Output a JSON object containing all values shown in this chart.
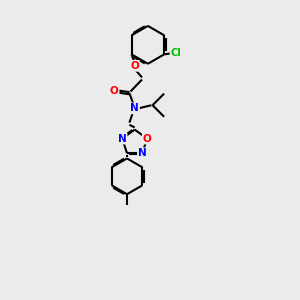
{
  "background_color": "#ebebeb",
  "bond_color": "#000000",
  "atom_colors": {
    "O": "#ff0000",
    "N": "#0000ff",
    "Cl": "#00bb00",
    "C": "#000000"
  },
  "figsize": [
    3.0,
    3.0
  ],
  "dpi": 100
}
